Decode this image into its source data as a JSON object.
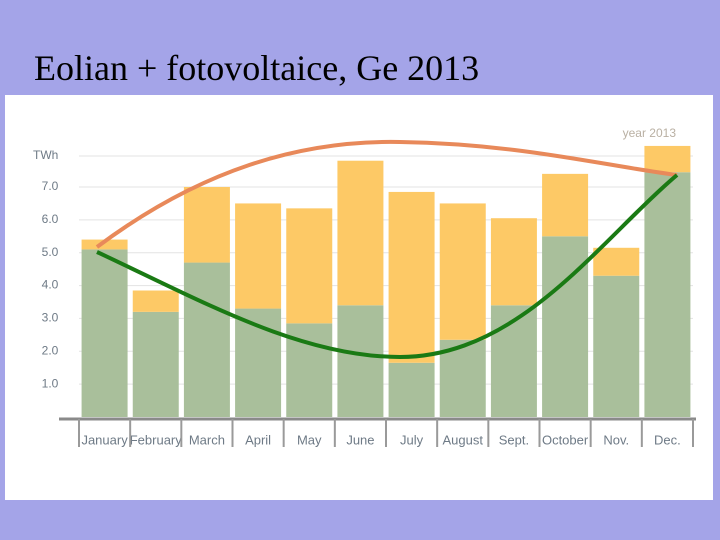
{
  "slide_title": "Eolian + fotovoltaice,  Ge 2013",
  "chart_data": {
    "type": "stacked_bar",
    "y_label": "TWh",
    "annotation": "year 2013",
    "categories": [
      "January",
      "February",
      "March",
      "April",
      "May",
      "June",
      "July",
      "August",
      "Sept.",
      "October",
      "Nov.",
      "Dec."
    ],
    "series": [
      {
        "color": "#a9bf9b",
        "values": [
          5.1,
          3.2,
          4.7,
          3.3,
          2.85,
          3.4,
          1.65,
          2.35,
          3.4,
          5.5,
          4.3,
          7.45
        ]
      },
      {
        "color": "#fdc966",
        "values": [
          0.3,
          0.65,
          2.3,
          3.2,
          3.5,
          4.4,
          5.2,
          4.15,
          2.65,
          1.9,
          0.85,
          0.8
        ]
      }
    ],
    "ylim": [
      0,
      8.4
    ],
    "yticks": [
      {
        "value": 1,
        "label": "1.0"
      },
      {
        "value": 2,
        "label": "2.0"
      },
      {
        "value": 3,
        "label": "3.0"
      },
      {
        "value": 4,
        "label": "4.0"
      },
      {
        "value": 5,
        "label": "5.0"
      },
      {
        "value": 6,
        "label": "6.0"
      },
      {
        "value": 7,
        "label": "7.0"
      }
    ],
    "grid": true
  }
}
